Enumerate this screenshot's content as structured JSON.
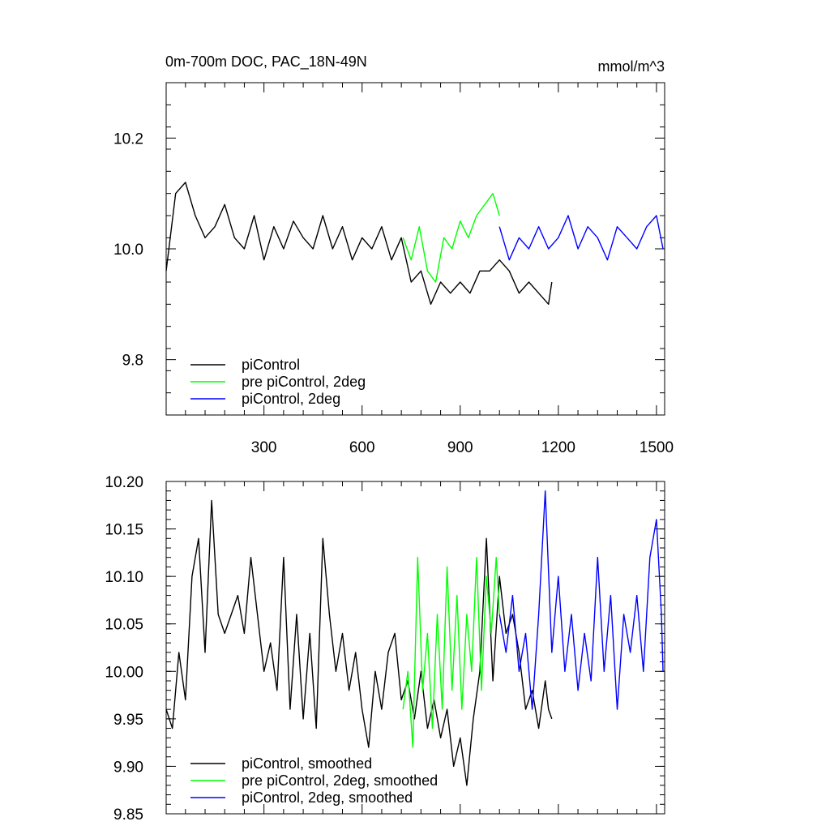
{
  "chart_data": [
    {
      "type": "line",
      "title": "0m-700m DOC, PAC_18N-49N",
      "units": "mmol/m^3",
      "xlabel": "",
      "ylabel": "",
      "xlim": [
        1,
        1525
      ],
      "ylim": [
        9.7,
        10.3
      ],
      "xticks": [
        300,
        600,
        900,
        1200,
        1500
      ],
      "yticks": [
        9.8,
        10.0,
        10.2
      ],
      "grid": false,
      "legend_position": "bottom-left",
      "series": [
        {
          "name": "piControl",
          "color": "#000000",
          "x": [
            1,
            30,
            60,
            90,
            120,
            150,
            180,
            210,
            240,
            270,
            300,
            330,
            360,
            390,
            420,
            450,
            480,
            510,
            540,
            570,
            600,
            630,
            660,
            690,
            720,
            750,
            780,
            810,
            840,
            870,
            900,
            930,
            960,
            990,
            1020,
            1050,
            1080,
            1110,
            1140,
            1170,
            1180
          ],
          "values": [
            9.96,
            10.1,
            10.12,
            10.06,
            10.02,
            10.04,
            10.08,
            10.02,
            10.0,
            10.06,
            9.98,
            10.04,
            10.0,
            10.05,
            10.02,
            10.0,
            10.06,
            10.0,
            10.04,
            9.98,
            10.02,
            10.0,
            10.04,
            9.98,
            10.02,
            9.94,
            9.96,
            9.9,
            9.94,
            9.92,
            9.94,
            9.92,
            9.96,
            9.96,
            9.98,
            9.96,
            9.92,
            9.94,
            9.92,
            9.9,
            9.94
          ]
        },
        {
          "name": "pre piControl, 2deg",
          "color": "#00ff00",
          "x": [
            725,
            750,
            775,
            800,
            825,
            850,
            875,
            900,
            925,
            950,
            975,
            1000,
            1020
          ],
          "values": [
            10.02,
            9.98,
            10.04,
            9.96,
            9.94,
            10.02,
            10.0,
            10.05,
            10.02,
            10.06,
            10.08,
            10.1,
            10.06
          ]
        },
        {
          "name": "piControl, 2deg",
          "color": "#0000ff",
          "x": [
            1020,
            1050,
            1080,
            1110,
            1140,
            1170,
            1200,
            1230,
            1260,
            1290,
            1320,
            1350,
            1380,
            1410,
            1440,
            1470,
            1500,
            1520
          ],
          "values": [
            10.04,
            9.98,
            10.02,
            10.0,
            10.04,
            10.0,
            10.02,
            10.06,
            10.0,
            10.04,
            10.02,
            9.98,
            10.04,
            10.02,
            10.0,
            10.04,
            10.06,
            10.0
          ]
        }
      ]
    },
    {
      "type": "line",
      "title": "",
      "xlabel": "",
      "ylabel": "",
      "xlim": [
        1,
        1525
      ],
      "ylim": [
        9.85,
        10.2
      ],
      "xticks": [
        300,
        600,
        900,
        1200,
        1500
      ],
      "yticks": [
        9.85,
        9.9,
        9.95,
        10.0,
        10.05,
        10.1,
        10.15,
        10.2
      ],
      "grid": false,
      "legend_position": "bottom-left",
      "series": [
        {
          "name": "piControl, smoothed",
          "color": "#000000",
          "x": [
            1,
            20,
            40,
            60,
            80,
            100,
            120,
            140,
            160,
            180,
            200,
            220,
            240,
            260,
            280,
            300,
            320,
            340,
            360,
            380,
            400,
            420,
            440,
            460,
            480,
            500,
            520,
            540,
            560,
            580,
            600,
            620,
            640,
            660,
            680,
            700,
            720,
            740,
            760,
            780,
            800,
            820,
            840,
            860,
            880,
            900,
            920,
            940,
            960,
            980,
            1000,
            1020,
            1040,
            1060,
            1080,
            1100,
            1120,
            1140,
            1160,
            1170,
            1180
          ],
          "values": [
            9.96,
            9.94,
            10.02,
            9.97,
            10.1,
            10.14,
            10.02,
            10.18,
            10.06,
            10.04,
            10.06,
            10.08,
            10.04,
            10.12,
            10.06,
            10.0,
            10.03,
            9.98,
            10.12,
            9.96,
            10.06,
            9.95,
            10.04,
            9.94,
            10.14,
            10.06,
            10.0,
            10.04,
            9.98,
            10.02,
            9.96,
            9.92,
            10.0,
            9.96,
            10.02,
            10.04,
            9.97,
            9.99,
            9.95,
            10.0,
            9.94,
            9.97,
            9.93,
            9.96,
            9.9,
            9.93,
            9.88,
            9.95,
            10.0,
            10.14,
            9.99,
            10.1,
            10.04,
            10.06,
            10.02,
            9.96,
            9.98,
            9.94,
            9.99,
            9.96,
            9.95
          ]
        },
        {
          "name": "pre piControl, 2deg, smoothed",
          "color": "#00ff00",
          "x": [
            725,
            740,
            755,
            770,
            785,
            800,
            815,
            830,
            845,
            860,
            875,
            890,
            905,
            920,
            935,
            950,
            965,
            980,
            995,
            1010,
            1020
          ],
          "values": [
            9.96,
            10.0,
            9.92,
            10.12,
            9.98,
            10.04,
            9.94,
            10.06,
            9.96,
            10.11,
            9.98,
            10.08,
            9.96,
            10.06,
            10.0,
            10.12,
            9.98,
            10.1,
            10.04,
            10.12,
            10.06
          ]
        },
        {
          "name": "piControl, 2deg, smoothed",
          "color": "#0000ff",
          "x": [
            1020,
            1040,
            1060,
            1080,
            1100,
            1120,
            1140,
            1160,
            1180,
            1200,
            1220,
            1240,
            1260,
            1280,
            1300,
            1320,
            1340,
            1360,
            1380,
            1400,
            1420,
            1440,
            1460,
            1480,
            1500,
            1515,
            1520
          ],
          "values": [
            10.06,
            10.02,
            10.08,
            10.0,
            10.04,
            9.96,
            10.06,
            10.19,
            10.02,
            10.1,
            10.0,
            10.06,
            9.98,
            10.04,
            9.99,
            10.12,
            10.0,
            10.08,
            9.96,
            10.06,
            10.02,
            10.08,
            10.0,
            10.12,
            10.16,
            10.06,
            10.0
          ]
        }
      ]
    }
  ]
}
